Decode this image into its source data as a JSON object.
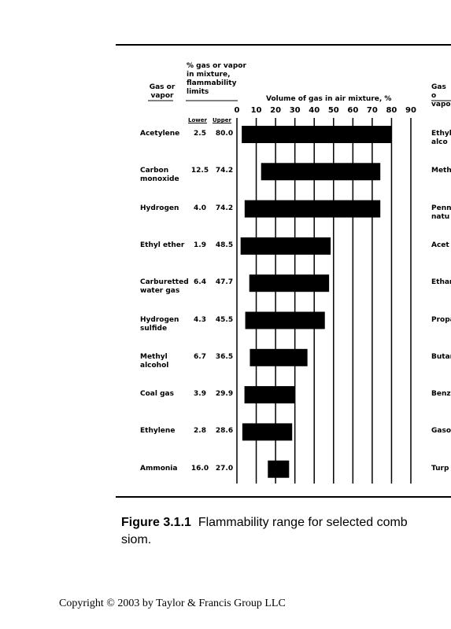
{
  "chart_data": {
    "type": "range-bar",
    "limits_header": "% gas or vapor\nin mixture,\nflammability\nlimits",
    "gas_header": "Gas or\nvapor",
    "x_label": "Volume of gas in air mixture, %",
    "categories": [
      "Acetylene",
      "Carbon\n  monoxide",
      "Hydrogen",
      "Ethyl ether",
      "Carburetted\n  water gas",
      "Hydrogen\n  sulfide",
      "Methyl\n  alcohol",
      "Coal gas",
      "Ethylene",
      "Ammonia"
    ],
    "series": [
      {
        "name": "Lower",
        "values": [
          2.5,
          12.5,
          4.0,
          1.9,
          6.4,
          4.3,
          6.7,
          3.9,
          2.8,
          16.0
        ],
        "value_labels": [
          "2.5",
          "12.5",
          "4.0",
          "1.9",
          "6.4",
          "4.3",
          "6.7",
          "3.9",
          "2.8",
          "16.0"
        ]
      },
      {
        "name": "Upper",
        "values": [
          80.0,
          74.2,
          74.2,
          48.5,
          47.7,
          45.5,
          36.5,
          29.9,
          28.6,
          27.0
        ],
        "value_labels": [
          "80.0",
          "74.2",
          "74.2",
          "48.5",
          "47.7",
          "45.5",
          "36.5",
          "29.9",
          "28.6",
          "27.0"
        ]
      }
    ],
    "color": "#000000",
    "xlim": [
      0,
      90
    ],
    "xticks": [
      0,
      10,
      20,
      30,
      40,
      50,
      60,
      70,
      80,
      90
    ],
    "grid": true
  },
  "right_column": {
    "header": "Gas o\nvapo",
    "items": [
      "Ethyl\n  alco",
      "Meth",
      "Penn\n  natu",
      "Acet",
      "Ethan",
      "Propa",
      "Butar",
      "Benz",
      "Gasol",
      "Turp"
    ]
  },
  "caption": {
    "label": "Figure 3.1.1",
    "text": "Flammability range for selected comb",
    "continuation": "siom."
  },
  "copyright": "Copyright © 2003 by Taylor & Francis Group LLC"
}
